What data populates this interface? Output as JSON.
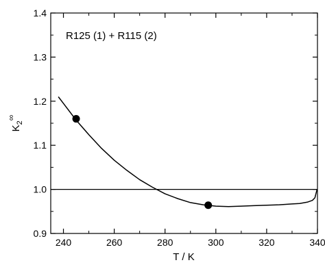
{
  "chart_data": {
    "type": "line",
    "title": "",
    "annotation": "R125 (1) + R115 (2)",
    "xlabel": "T / K",
    "ylabel_base": "K",
    "ylabel_sub": "2",
    "ylabel_sup": "∞",
    "xlim": [
      235,
      340
    ],
    "ylim": [
      0.9,
      1.4
    ],
    "xticks": [
      240,
      260,
      280,
      300,
      320,
      340
    ],
    "xtick_labels": [
      "240",
      "260",
      "280",
      "300",
      "320",
      "340"
    ],
    "yticks": [
      0.9,
      1.0,
      1.1,
      1.2,
      1.3,
      1.4
    ],
    "ytick_labels": [
      "0.9",
      "1.0",
      "1.1",
      "1.2",
      "1.3",
      "1.4"
    ],
    "grid": false,
    "reference_line": {
      "y": 1.0
    },
    "series": [
      {
        "kind": "curve",
        "x": [
          238,
          240,
          245,
          250,
          255,
          260,
          265,
          270,
          275,
          280,
          285,
          290,
          295,
          300,
          305,
          310,
          315,
          320,
          325,
          330,
          333,
          336,
          338,
          339,
          339.8
        ],
        "y": [
          1.21,
          1.195,
          1.157,
          1.124,
          1.093,
          1.066,
          1.043,
          1.022,
          1.005,
          0.99,
          0.979,
          0.97,
          0.965,
          0.962,
          0.961,
          0.962,
          0.963,
          0.964,
          0.965,
          0.967,
          0.968,
          0.971,
          0.975,
          0.981,
          0.999
        ]
      },
      {
        "kind": "points",
        "x": [
          245,
          297
        ],
        "y": [
          1.16,
          0.964
        ]
      }
    ]
  }
}
